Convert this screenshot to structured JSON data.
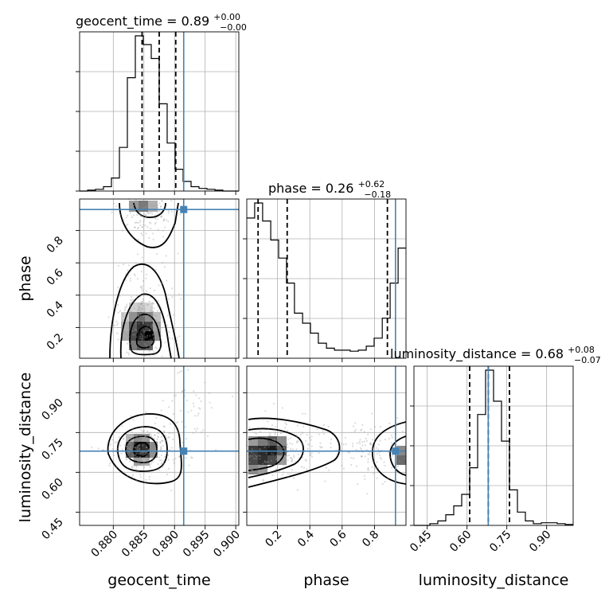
{
  "chart_data": {
    "type": "corner",
    "parameters": [
      "geocent_time",
      "phase",
      "luminosity_distance"
    ],
    "titles": [
      {
        "param": "geocent_time",
        "prefix": "geocent_time = ",
        "value": "0.89",
        "plus": "+0.00",
        "minus": "−0.00"
      },
      {
        "param": "phase",
        "prefix": "phase = ",
        "value": "0.26",
        "plus": "+0.62",
        "minus": "−0.18"
      },
      {
        "param": "luminosity_distance",
        "prefix": "luminosity_distance = ",
        "value": "0.68",
        "plus": "+0.08",
        "minus": "−0.07"
      }
    ],
    "axis_labels": [
      "geocent_time",
      "phase",
      "luminosity_distance"
    ],
    "ranges": [
      [
        0.8745,
        0.9005
      ],
      [
        0.01,
        0.995
      ],
      [
        0.4,
        1.0
      ]
    ],
    "ticks": {
      "geocent_time": [
        "0.880",
        "0.885",
        "0.890",
        "0.895",
        "0.900"
      ],
      "phase": [
        "0.2",
        "0.4",
        "0.6",
        "0.8"
      ],
      "luminosity_distance": [
        "0.45",
        "0.60",
        "0.75",
        "0.90"
      ]
    },
    "truths": {
      "geocent_time": 0.8915,
      "phase": 0.93,
      "luminosity_distance": 0.68
    },
    "quantiles": {
      "geocent_time": [
        0.8847,
        0.8875,
        0.8902
      ],
      "phase": [
        0.08,
        0.26,
        0.88
      ],
      "luminosity_distance": [
        0.61,
        0.68,
        0.76
      ]
    },
    "histograms": {
      "geocent_time": {
        "edges": [
          0.8745,
          0.8758,
          0.8771,
          0.8784,
          0.8797,
          0.881,
          0.8823,
          0.8836,
          0.8849,
          0.8862,
          0.8875,
          0.8888,
          0.8901,
          0.8914,
          0.8927,
          0.894,
          0.8953,
          0.8966,
          0.8979,
          0.8992,
          0.9005
        ],
        "counts": [
          0,
          1,
          2,
          5,
          15,
          50,
          130,
          178,
          168,
          152,
          100,
          55,
          25,
          11,
          5,
          3,
          2,
          1,
          0,
          0
        ]
      },
      "phase": {
        "edges": [
          0.01,
          0.059,
          0.108,
          0.158,
          0.207,
          0.256,
          0.305,
          0.355,
          0.404,
          0.453,
          0.503,
          0.552,
          0.601,
          0.65,
          0.7,
          0.749,
          0.798,
          0.848,
          0.897,
          0.946,
          0.995
        ],
        "counts": [
          140,
          155,
          137,
          118,
          100,
          75,
          45,
          35,
          25,
          15,
          10,
          8,
          8,
          7,
          8,
          12,
          20,
          40,
          75,
          110
        ]
      },
      "luminosity_distance": {
        "edges": [
          0.4,
          0.43,
          0.46,
          0.49,
          0.52,
          0.55,
          0.58,
          0.61,
          0.64,
          0.67,
          0.7,
          0.73,
          0.76,
          0.79,
          0.82,
          0.85,
          0.88,
          0.91,
          0.94,
          0.97,
          1.0
        ],
        "counts": [
          0,
          0,
          2,
          5,
          12,
          22,
          35,
          65,
          125,
          175,
          140,
          95,
          40,
          15,
          5,
          2,
          3,
          3,
          2,
          1
        ]
      }
    },
    "grid": true
  }
}
